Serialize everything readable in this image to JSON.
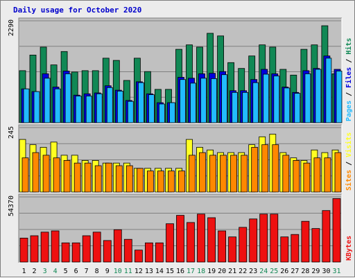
{
  "chart_data": {
    "type": "bar",
    "title": "Daily usage for October 2020",
    "categories": [
      "1",
      "2",
      "3",
      "4",
      "5",
      "6",
      "7",
      "8",
      "9",
      "10",
      "11",
      "12",
      "13",
      "14",
      "15",
      "16",
      "17",
      "18",
      "19",
      "20",
      "21",
      "22",
      "23",
      "24",
      "25",
      "26",
      "27",
      "28",
      "29",
      "30",
      "31"
    ],
    "weekend_days": [
      3,
      4,
      10,
      11,
      17,
      18,
      24,
      25,
      31
    ],
    "colors": {
      "title": "#0000cc",
      "background": "#ececec",
      "plot_background": "#c0c0c0",
      "hits": "#118855",
      "files": "#0000dd",
      "pages": "#22bbff",
      "visits": "#ffff22",
      "sites": "#ff8800",
      "kbytes": "#ee1111",
      "weekday_label": "#000000",
      "weekend_label": "#118855"
    },
    "panels": [
      {
        "name": "hits-files-pages",
        "max_label": "2290",
        "ylim": [
          0,
          2290
        ],
        "side_label": [
          "Pages",
          " / ",
          "Files",
          " / ",
          "Hits"
        ],
        "side_label_colors": [
          "#22bbff",
          "#000000",
          "#0000dd",
          "#000000",
          "#118855"
        ],
        "series": [
          {
            "name": "Hits",
            "color": "#118855",
            "values": [
              1170,
              1520,
              1700,
              1300,
              1600,
              1140,
              1170,
              1170,
              1450,
              1400,
              950,
              1450,
              1150,
              750,
              750,
              1650,
              1750,
              1700,
              2010,
              1950,
              1350,
              1220,
              1500,
              1750,
              1700,
              1200,
              1070,
              1650,
              1750,
              2180,
              1100
            ]
          },
          {
            "name": "Files",
            "color": "#0000dd",
            "values": [
              760,
              700,
              1100,
              800,
              1160,
              620,
              650,
              670,
              830,
              730,
              500,
              920,
              650,
              450,
              450,
              1020,
              1000,
              1100,
              1110,
              1150,
              720,
              720,
              970,
              1200,
              1100,
              800,
              680,
              1170,
              1220,
              1500,
              1200
            ]
          },
          {
            "name": "Pages",
            "color": "#22bbff",
            "values": [
              760,
              700,
              1000,
              760,
              1100,
              600,
              600,
              650,
              790,
              710,
              480,
              900,
              630,
              420,
              450,
              970,
              890,
              1000,
              990,
              1080,
              680,
              680,
              900,
              1090,
              1050,
              780,
              660,
              1100,
              1200,
              1450,
              1160
            ]
          }
        ]
      },
      {
        "name": "visits-sites",
        "max_label": "245",
        "ylim": [
          0,
          245
        ],
        "side_label": [
          "Sites",
          " / ",
          "Visits"
        ],
        "side_label_colors": [
          "#ff8800",
          "#000000",
          "#ffff22"
        ],
        "series": [
          {
            "name": "Visits",
            "color": "#ffff22",
            "values": [
              200,
              180,
              170,
              190,
              140,
              140,
              120,
              120,
              110,
              110,
              110,
              90,
              90,
              90,
              90,
              90,
              200,
              170,
              160,
              150,
              150,
              150,
              180,
              210,
              220,
              150,
              130,
              120,
              160,
              150,
              160
            ]
          },
          {
            "name": "Sites",
            "color": "#ff8800",
            "values": [
              130,
              150,
              140,
              130,
              120,
              110,
              110,
              100,
              110,
              100,
              100,
              90,
              80,
              80,
              80,
              80,
              140,
              150,
              140,
              140,
              140,
              140,
              170,
              180,
              180,
              140,
              120,
              110,
              130,
              130,
              150
            ]
          }
        ]
      },
      {
        "name": "kbytes",
        "max_label": "54370",
        "ylim": [
          0,
          54370
        ],
        "side_label": [
          "KBytes"
        ],
        "side_label_colors": [
          "#ee1111"
        ],
        "series": [
          {
            "name": "KBytes",
            "color": "#ee1111",
            "values": [
              20000,
              22000,
              25000,
              26000,
              16000,
              16000,
              22000,
              25000,
              18000,
              27000,
              19000,
              10000,
              16000,
              16000,
              32000,
              39000,
              33000,
              40000,
              37000,
              26000,
              21000,
              29000,
              36000,
              40000,
              40000,
              21000,
              23000,
              34000,
              28000,
              43000,
              53000
            ]
          }
        ]
      }
    ]
  }
}
